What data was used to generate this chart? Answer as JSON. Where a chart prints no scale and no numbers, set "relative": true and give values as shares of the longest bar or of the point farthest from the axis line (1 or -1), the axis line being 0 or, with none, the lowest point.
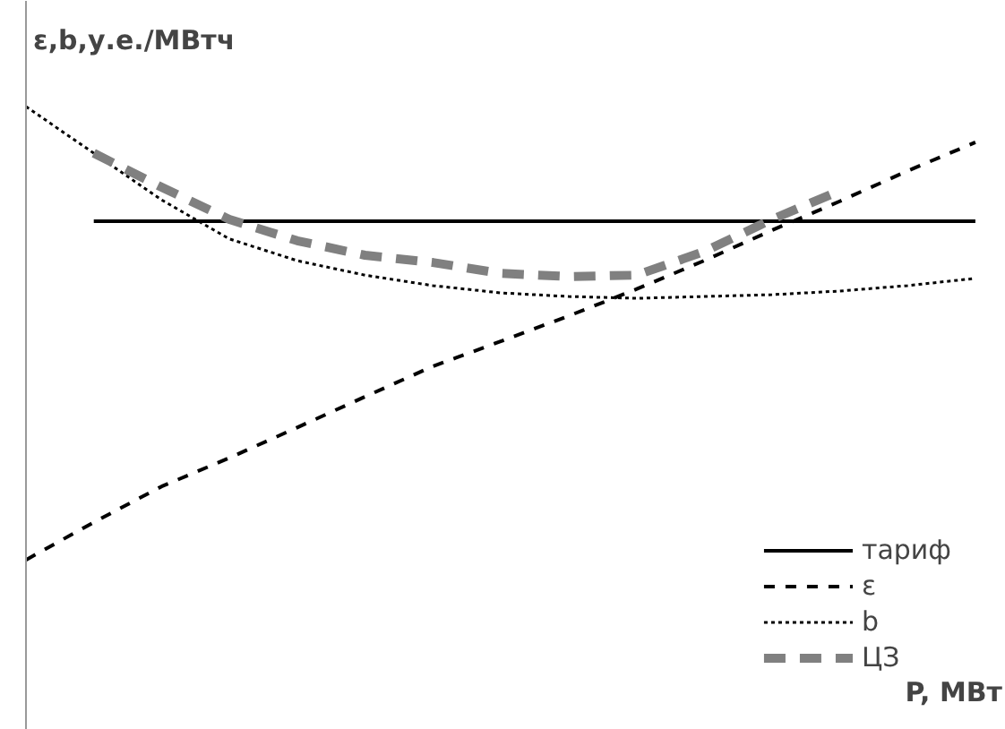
{
  "chart_data": {
    "type": "line",
    "relative": true,
    "ylabel": "ε,b,у.е./МВтч",
    "xlabel": "P, МВт",
    "categories": [
      null,
      null,
      null,
      null,
      null,
      null,
      null,
      null,
      null,
      null,
      null,
      null,
      null,
      null,
      null
    ],
    "series": [
      {
        "name": "тариф",
        "color": "#000000",
        "line_style": "solid",
        "values": [
          null,
          0.747,
          0.747,
          0.747,
          0.747,
          0.747,
          0.747,
          0.747,
          0.747,
          0.747,
          0.747,
          0.747,
          0.747,
          0.747,
          0.747
        ]
      },
      {
        "name": "ε",
        "color": "#000000",
        "line_style": "dashed",
        "values": [
          0,
          0.083,
          0.162,
          0.225,
          0.292,
          0.36,
          0.427,
          0.482,
          0.538,
          0.597,
          0.66,
          0.727,
          0.791,
          0.858,
          0.921
        ]
      },
      {
        "name": "b",
        "color": "#000000",
        "line_style": "dotted",
        "values": [
          1.0,
          0.897,
          0.794,
          0.708,
          0.66,
          0.628,
          0.605,
          0.589,
          0.581,
          0.577,
          0.581,
          0.585,
          0.593,
          0.605,
          0.621
        ]
      },
      {
        "name": "ЦЗ",
        "color": "#808080",
        "line_style": "dashed",
        "values": [
          null,
          0.897,
          0.822,
          0.751,
          0.704,
          0.672,
          0.656,
          0.632,
          0.625,
          0.628,
          0.68,
          0.751,
          0.814,
          null,
          null
        ]
      }
    ],
    "legend": "bottom right",
    "grid": false,
    "marker": "none"
  }
}
